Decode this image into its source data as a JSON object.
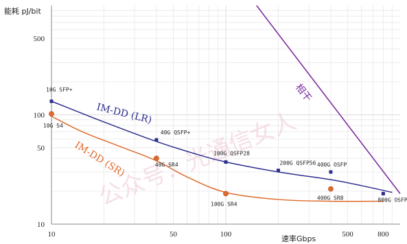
{
  "chart_data": {
    "type": "line",
    "x_axis": {
      "scale": "log",
      "range": [
        10,
        1000
      ],
      "ticks": [
        10,
        50,
        100,
        500,
        800
      ],
      "label": "速率Gbps"
    },
    "y_axis": {
      "scale": "log",
      "range": [
        10,
        1000
      ],
      "ticks": [
        10,
        50,
        100,
        500
      ],
      "label": "能耗 pJ/bit"
    },
    "grid": true,
    "series": [
      {
        "name": "IM-DD (LR)",
        "color": "#2e2e8f",
        "marker": "square",
        "points": [
          {
            "x": 10,
            "y": 133,
            "label": "10G SFP+"
          },
          {
            "x": 40,
            "y": 59,
            "label": "40G QSFP+"
          },
          {
            "x": 100,
            "y": 37,
            "label": "100G QSFP28"
          },
          {
            "x": 200,
            "y": 31,
            "label": "200G QSFP56"
          },
          {
            "x": 400,
            "y": 30,
            "label": "400G OSFP"
          },
          {
            "x": 800,
            "y": 19,
            "label": "800G OSFP"
          }
        ],
        "curve": [
          [
            10,
            133
          ],
          [
            20,
            86
          ],
          [
            40,
            57
          ],
          [
            70,
            43
          ],
          [
            100,
            37
          ],
          [
            200,
            30
          ],
          [
            400,
            25.5
          ],
          [
            600,
            22.5
          ],
          [
            900,
            19.5
          ]
        ]
      },
      {
        "name": "IM-DD (SR)",
        "color": "#e06a2c",
        "marker": "circle",
        "points": [
          {
            "x": 10,
            "y": 102,
            "label": "10G S4"
          },
          {
            "x": 40,
            "y": 40,
            "label": "40G SR4"
          },
          {
            "x": 100,
            "y": 19,
            "label": "100G SR4"
          },
          {
            "x": 400,
            "y": 21,
            "label": "400G SR8"
          }
        ],
        "curve": [
          [
            10,
            97
          ],
          [
            15,
            70
          ],
          [
            25,
            51
          ],
          [
            40,
            38
          ],
          [
            60,
            27
          ],
          [
            100,
            19.5
          ],
          [
            200,
            16.8
          ],
          [
            400,
            16.2
          ],
          [
            800,
            16.2
          ]
        ]
      },
      {
        "name": "相干",
        "color": "#7b2d9e",
        "marker": "none",
        "points": [],
        "curve": [
          [
            150,
            1000
          ],
          [
            1000,
            19
          ]
        ]
      }
    ],
    "annotations": [
      "IM-DD (LR)",
      "IM-DD (SR)",
      "相干"
    ]
  },
  "watermark": "公众号：光通信女人"
}
